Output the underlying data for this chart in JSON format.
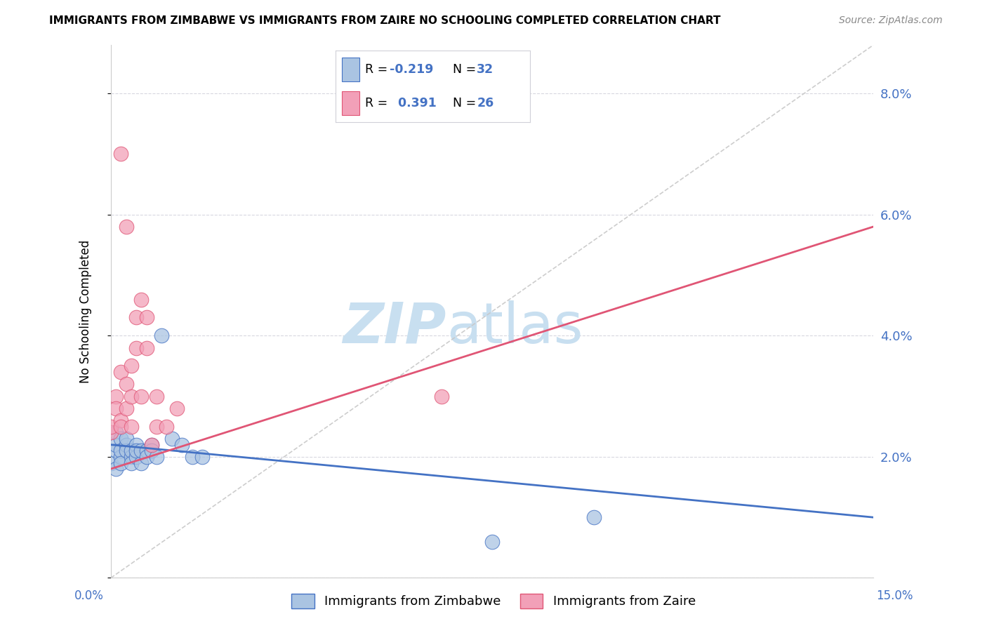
{
  "title": "IMMIGRANTS FROM ZIMBABWE VS IMMIGRANTS FROM ZAIRE NO SCHOOLING COMPLETED CORRELATION CHART",
  "source": "Source: ZipAtlas.com",
  "ylabel": "No Schooling Completed",
  "xlim": [
    0.0,
    0.15
  ],
  "ylim": [
    0.0,
    0.088
  ],
  "yticks": [
    0.0,
    0.02,
    0.04,
    0.06,
    0.08
  ],
  "color_zimbabwe": "#aac4e2",
  "color_zaire": "#f2a0b8",
  "color_line_zimbabwe": "#4472c4",
  "color_line_zaire": "#e05575",
  "color_ref_line": "#c8c8c8",
  "watermark_zip": "ZIP",
  "watermark_atlas": "atlas",
  "watermark_color_zip": "#c8dff0",
  "watermark_color_atlas": "#c8dff0",
  "zimbabwe_x": [
    0.0,
    0.001,
    0.001,
    0.001,
    0.001,
    0.002,
    0.002,
    0.002,
    0.002,
    0.003,
    0.003,
    0.003,
    0.004,
    0.004,
    0.004,
    0.005,
    0.005,
    0.005,
    0.006,
    0.006,
    0.007,
    0.007,
    0.008,
    0.008,
    0.009,
    0.01,
    0.012,
    0.014,
    0.016,
    0.018,
    0.075,
    0.095
  ],
  "zimbabwe_y": [
    0.019,
    0.024,
    0.021,
    0.022,
    0.018,
    0.023,
    0.02,
    0.021,
    0.019,
    0.022,
    0.021,
    0.023,
    0.02,
    0.021,
    0.019,
    0.022,
    0.02,
    0.021,
    0.019,
    0.021,
    0.021,
    0.02,
    0.022,
    0.021,
    0.02,
    0.04,
    0.023,
    0.022,
    0.02,
    0.02,
    0.006,
    0.01
  ],
  "zaire_x": [
    0.0,
    0.0,
    0.001,
    0.001,
    0.002,
    0.002,
    0.002,
    0.003,
    0.003,
    0.004,
    0.004,
    0.004,
    0.005,
    0.005,
    0.006,
    0.006,
    0.007,
    0.007,
    0.008,
    0.009,
    0.009,
    0.011,
    0.013,
    0.065,
    0.002,
    0.003
  ],
  "zaire_y": [
    0.024,
    0.025,
    0.03,
    0.028,
    0.034,
    0.026,
    0.025,
    0.032,
    0.028,
    0.035,
    0.03,
    0.025,
    0.038,
    0.043,
    0.046,
    0.03,
    0.043,
    0.038,
    0.022,
    0.025,
    0.03,
    0.025,
    0.028,
    0.03,
    0.07,
    0.058
  ],
  "zim_line_x0": 0.0,
  "zim_line_x1": 0.15,
  "zim_line_y0": 0.022,
  "zim_line_y1": 0.01,
  "zaire_line_x0": 0.0,
  "zaire_line_x1": 0.15,
  "zaire_line_y0": 0.018,
  "zaire_line_y1": 0.058
}
